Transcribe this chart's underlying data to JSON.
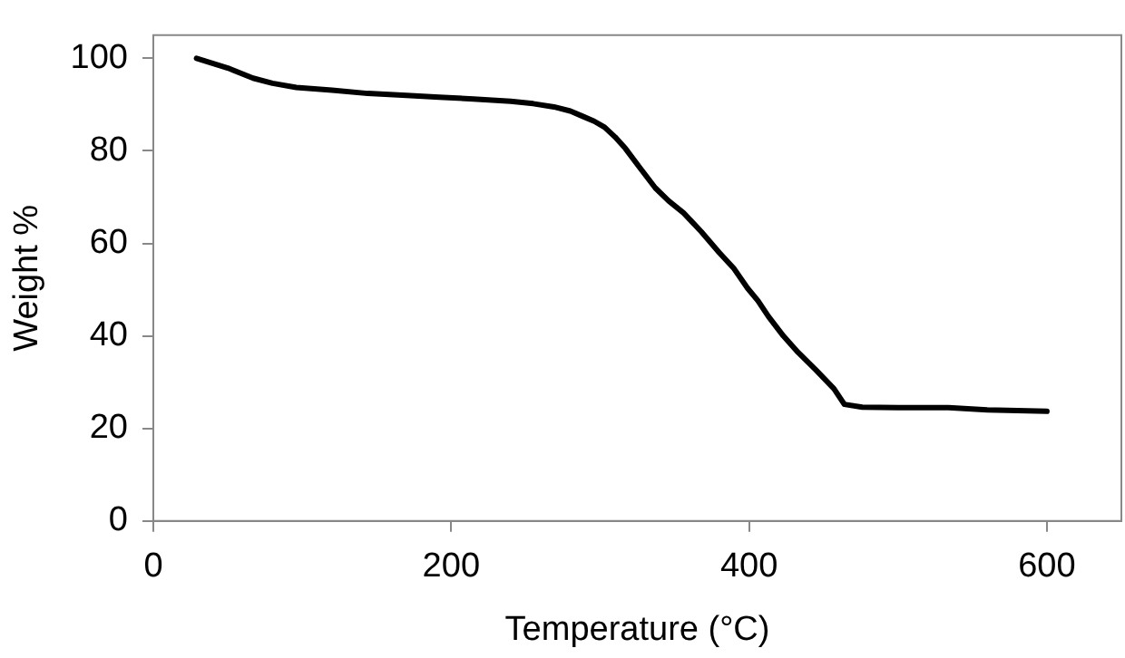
{
  "chart_data": {
    "type": "line",
    "xlabel": "Temperature (°C)",
    "ylabel": "Weight %",
    "x": [
      29,
      50,
      67,
      80,
      96,
      120,
      144,
      170,
      192,
      215,
      240,
      255,
      269,
      280,
      288,
      296,
      303,
      310,
      317,
      327,
      337,
      346,
      356,
      368,
      380,
      390,
      399,
      406,
      413,
      423,
      433,
      445,
      457,
      464,
      476,
      500,
      534,
      560,
      600
    ],
    "series": [
      {
        "color": "#000000",
        "values": [
          100,
          97.9,
          95.7,
          94.6,
          93.7,
          93.1,
          92.4,
          92,
          91.6,
          91.2,
          90.7,
          90.2,
          89.5,
          88.6,
          87.5,
          86.4,
          85.1,
          83,
          80.5,
          76.2,
          72,
          69.2,
          66.6,
          62.5,
          58,
          54.5,
          50.3,
          47.6,
          44.2,
          40,
          36.4,
          32.6,
          28.6,
          25.2,
          24.6,
          24.5,
          24.5,
          24,
          23.7
        ]
      }
    ],
    "xlim": [
      0,
      650
    ],
    "xticks": [
      0,
      200,
      400,
      600
    ],
    "ylim": [
      0,
      105
    ],
    "yticks": [
      0,
      20,
      40,
      60,
      80,
      100
    ],
    "grid": false,
    "legend": false,
    "marker": "none",
    "line_style": "solid"
  }
}
